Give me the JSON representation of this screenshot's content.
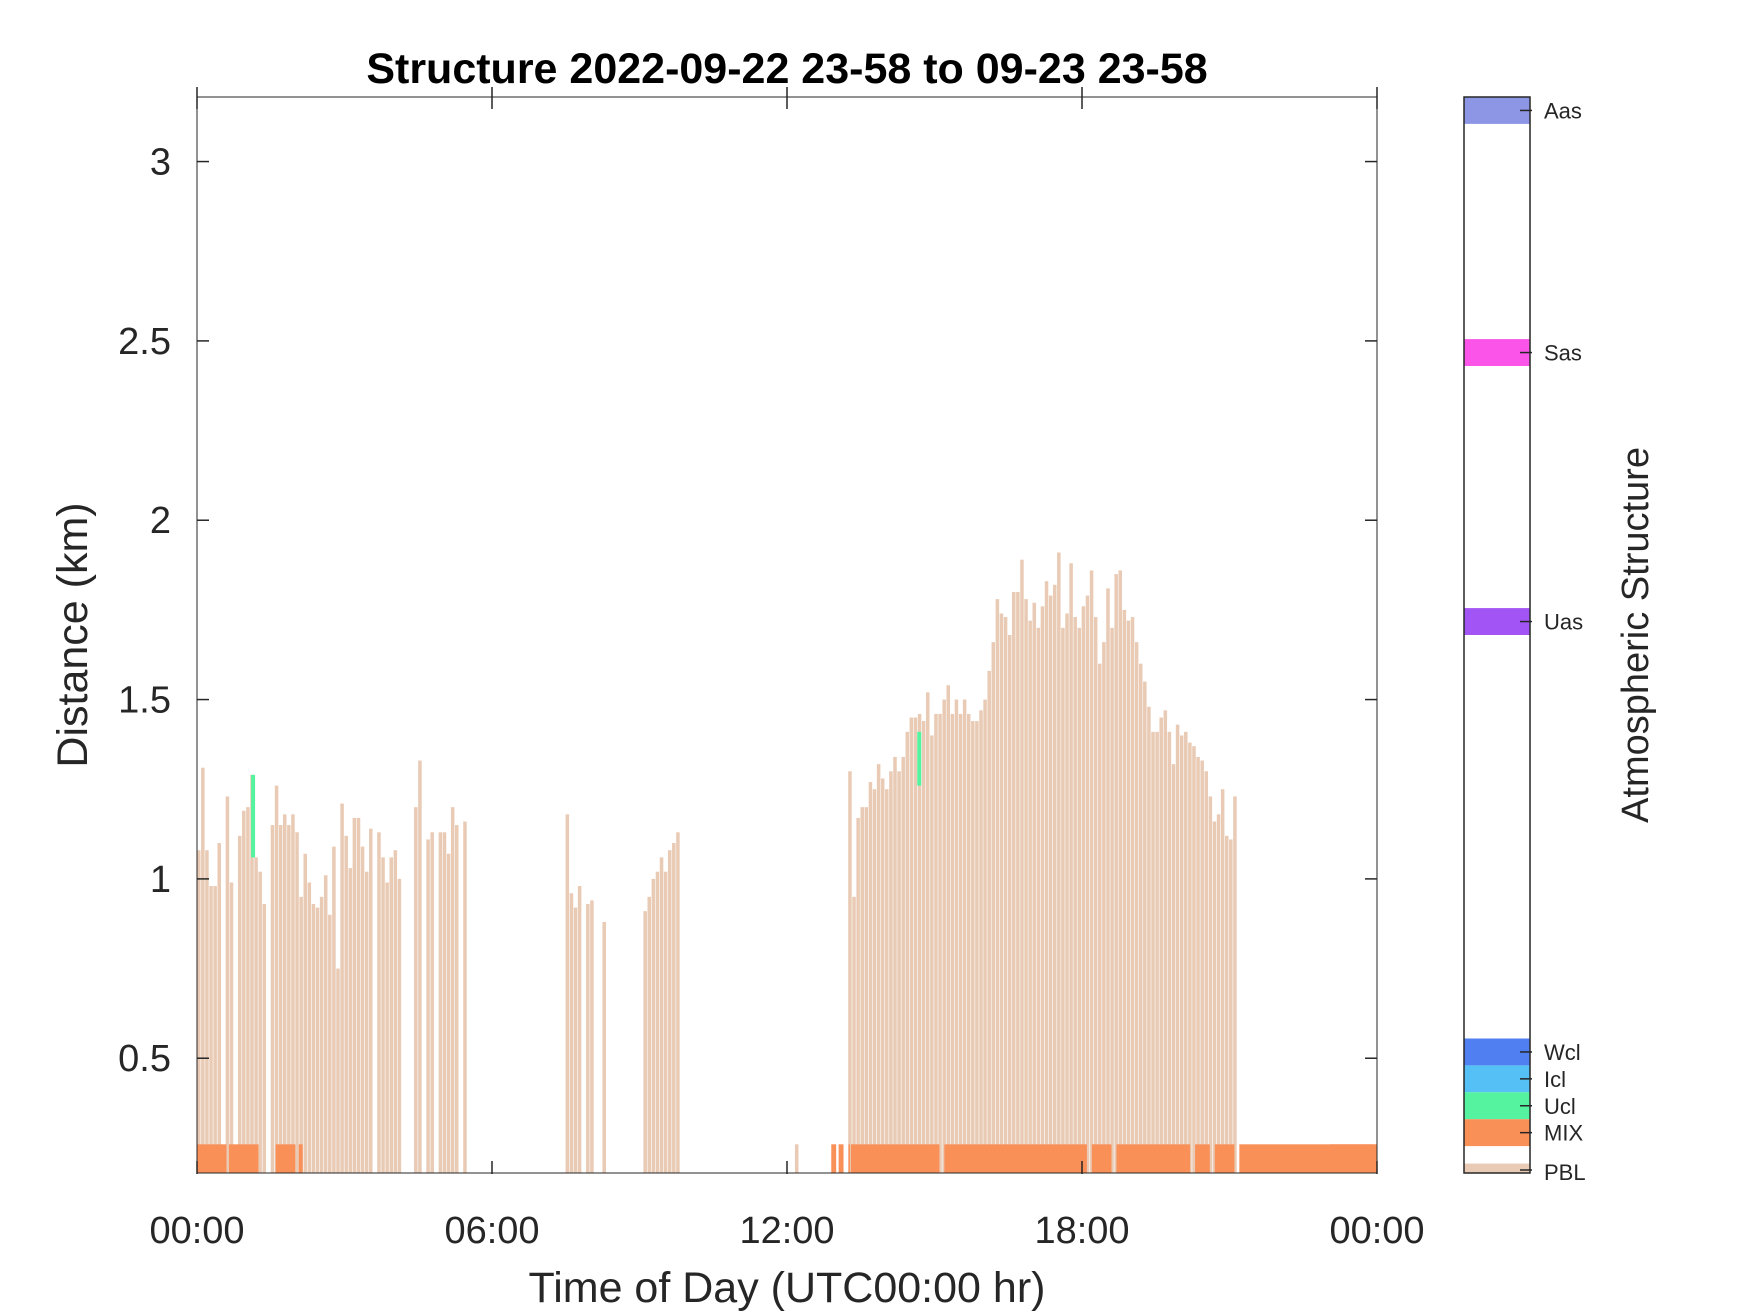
{
  "chart_data": {
    "type": "bar",
    "title": "Structure 2022-09-22 23-58 to 09-23 23-58",
    "xlabel": "Time of Day (UTC00:00 hr)",
    "ylabel": "Distance (km)",
    "xlim_hours": [
      0,
      24
    ],
    "ylim": [
      0.18,
      3.18
    ],
    "x_ticks": [
      {
        "hour": 0,
        "label": "00:00"
      },
      {
        "hour": 6,
        "label": "06:00"
      },
      {
        "hour": 12,
        "label": "12:00"
      },
      {
        "hour": 18,
        "label": "18:00"
      },
      {
        "hour": 24,
        "label": "00:00"
      }
    ],
    "y_ticks": [
      {
        "value": 0.5,
        "label": "0.5"
      },
      {
        "value": 1,
        "label": "1"
      },
      {
        "value": 1.5,
        "label": "1.5"
      },
      {
        "value": 2,
        "label": "2"
      },
      {
        "value": 2.5,
        "label": "2.5"
      },
      {
        "value": 3,
        "label": "3"
      }
    ],
    "bin_hours": 0.0833,
    "pbl_heights_km": [
      1.08,
      1.31,
      1.08,
      0.98,
      0.98,
      1.1,
      0,
      1.23,
      0.99,
      0,
      1.12,
      1.19,
      1.2,
      1.29,
      1.06,
      1.02,
      0.93,
      0,
      1.15,
      1.26,
      1.15,
      1.18,
      1.15,
      1.18,
      1.13,
      0.95,
      1.07,
      0.99,
      0.93,
      0.92,
      0.95,
      1.01,
      0.9,
      1.09,
      0.75,
      1.21,
      1.12,
      1.03,
      1.17,
      1.17,
      1.09,
      1.02,
      1.14,
      0,
      1.13,
      1.06,
      0.99,
      1.06,
      1.08,
      1.0,
      0,
      0,
      0,
      1.2,
      1.33,
      0,
      1.11,
      1.13,
      0,
      1.13,
      1.13,
      1.07,
      1.2,
      1.15,
      0,
      1.16,
      0,
      0,
      0,
      0,
      0,
      0,
      0,
      0,
      0,
      0,
      0,
      0,
      0,
      0,
      0,
      0,
      0,
      0,
      0,
      0,
      0,
      0,
      0,
      0,
      1.18,
      0.96,
      0.92,
      0.98,
      0,
      0.93,
      0.94,
      0,
      0,
      0.88,
      0,
      0,
      0,
      0,
      0,
      0,
      0,
      0,
      0,
      0.91,
      0.95,
      1.0,
      1.02,
      1.06,
      1.02,
      1.08,
      1.1,
      1.13,
      0,
      0,
      0,
      0,
      0,
      0,
      0,
      0,
      0,
      0,
      0,
      0,
      0,
      0,
      0,
      0,
      0,
      0,
      0,
      0,
      0,
      0,
      0,
      0,
      0,
      0,
      0,
      0,
      0.26,
      0,
      0,
      0,
      0,
      0,
      0,
      0,
      0,
      0,
      0,
      0,
      0,
      1.3,
      0.95,
      1.17,
      1.2,
      1.2,
      1.27,
      1.25,
      1.32,
      1.28,
      1.25,
      1.3,
      1.34,
      1.3,
      1.34,
      1.41,
      1.45,
      1.45,
      1.46,
      1.44,
      1.52,
      1.4,
      1.46,
      1.46,
      1.5,
      1.54,
      1.46,
      1.5,
      1.46,
      1.5,
      1.46,
      1.44,
      1.44,
      1.47,
      1.5,
      1.58,
      1.66,
      1.78,
      1.74,
      1.73,
      1.68,
      1.8,
      1.8,
      1.89,
      1.78,
      1.72,
      1.77,
      1.7,
      1.76,
      1.83,
      1.79,
      1.82,
      1.91,
      1.7,
      1.74,
      1.88,
      1.73,
      1.7,
      1.76,
      1.79,
      1.86,
      1.73,
      1.6,
      1.66,
      1.81,
      1.7,
      1.85,
      1.86,
      1.75,
      1.72,
      1.73,
      1.66,
      1.6,
      1.55,
      1.48,
      1.41,
      1.41,
      1.45,
      1.47,
      1.41,
      1.32,
      1.43,
      1.4,
      1.41,
      1.38,
      1.37,
      1.34,
      1.33,
      1.3,
      1.23,
      1.16,
      1.18,
      1.25,
      1.12,
      1.11,
      1.23
    ],
    "mix_segments_hours": [
      [
        0.0,
        0.6
      ],
      [
        0.65,
        1.25
      ],
      [
        1.6,
        2.0
      ],
      [
        2.07,
        2.15
      ],
      [
        12.9,
        13.0
      ],
      [
        13.05,
        13.15
      ],
      [
        13.25,
        13.28
      ],
      [
        13.3,
        15.1
      ],
      [
        15.2,
        18.1
      ],
      [
        18.2,
        18.6
      ],
      [
        18.7,
        20.2
      ],
      [
        20.3,
        20.6
      ],
      [
        20.7,
        21.1
      ],
      [
        21.2,
        23.95
      ],
      [
        23.05,
        24.0
      ]
    ],
    "ucl_segments": [
      {
        "hour": 1.1,
        "y0": 1.06,
        "y1": 1.29
      },
      {
        "hour": 14.65,
        "y0": 1.26,
        "y1": 1.41
      }
    ],
    "colorbar": {
      "label": "Atmospheric Structure",
      "entries": [
        {
          "name": "Aas",
          "color": "#8c96e5"
        },
        {
          "name": "Sas",
          "color": "#fa55e8"
        },
        {
          "name": "Uas",
          "color": "#a254f5"
        },
        {
          "name": "Wcl",
          "color": "#4f7ff0"
        },
        {
          "name": "Icl",
          "color": "#55c0f5"
        },
        {
          "name": "Ucl",
          "color": "#55f3a0"
        },
        {
          "name": "MIX",
          "color": "#f99058"
        },
        {
          "name": "PBL",
          "color": "#e9cab4"
        }
      ]
    },
    "colors": {
      "pbl": "#e9cab4",
      "mix": "#f99058",
      "ucl": "#55f3a0"
    }
  }
}
